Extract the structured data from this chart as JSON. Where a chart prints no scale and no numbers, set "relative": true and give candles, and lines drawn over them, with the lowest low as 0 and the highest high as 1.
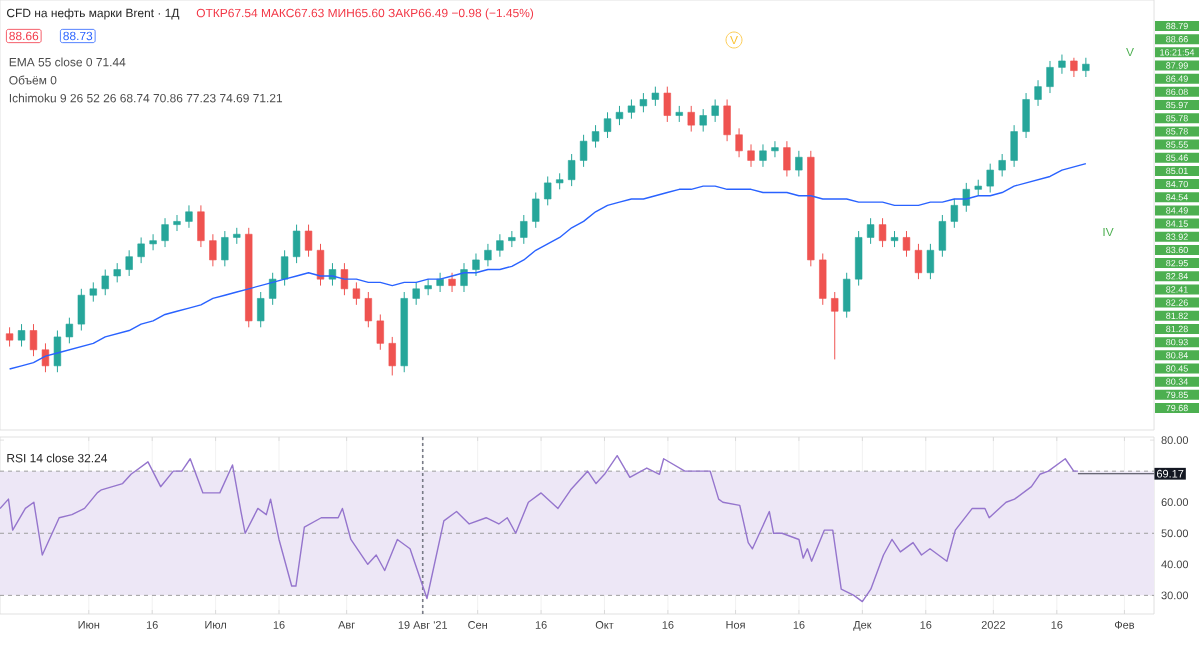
{
  "chart_data": [
    {
      "type": "candlestick",
      "title": "CFD на нефть марки Brent · 1Д",
      "subtitle": "ОТКР67.54 МАКС67.63 МИН65.60 ЗАКР66.49 −0.98 (−1.45%)",
      "relative": true,
      "categories": [
        null,
        null,
        null,
        null,
        null,
        null,
        null,
        null,
        null,
        null,
        null,
        null,
        null,
        null,
        null,
        null,
        null,
        null,
        null,
        null,
        null,
        null,
        null,
        null,
        null,
        null,
        null,
        null,
        null,
        null,
        null,
        null,
        null,
        null,
        null,
        null,
        null,
        null,
        null,
        null,
        null,
        null,
        null,
        null,
        null,
        null,
        null,
        null,
        null,
        null,
        null,
        null,
        null,
        null,
        null,
        null,
        null,
        null,
        null,
        null,
        null,
        null,
        null,
        null,
        null,
        null,
        null,
        null,
        null,
        null,
        null,
        null,
        null,
        null,
        null,
        null,
        null,
        null,
        null,
        null,
        null,
        null,
        null,
        null,
        null,
        null,
        null,
        null,
        null,
        null,
        null
      ],
      "ohlc": [
        [
          0.13,
          0.15,
          0.09,
          0.11
        ],
        [
          0.11,
          0.16,
          0.09,
          0.14
        ],
        [
          0.14,
          0.16,
          0.06,
          0.08
        ],
        [
          0.08,
          0.1,
          0.01,
          0.03
        ],
        [
          0.03,
          0.14,
          0.01,
          0.12
        ],
        [
          0.12,
          0.18,
          0.1,
          0.16
        ],
        [
          0.16,
          0.27,
          0.14,
          0.25
        ],
        [
          0.25,
          0.29,
          0.23,
          0.27
        ],
        [
          0.27,
          0.33,
          0.25,
          0.31
        ],
        [
          0.31,
          0.35,
          0.29,
          0.33
        ],
        [
          0.33,
          0.39,
          0.31,
          0.37
        ],
        [
          0.37,
          0.43,
          0.35,
          0.41
        ],
        [
          0.41,
          0.44,
          0.39,
          0.42
        ],
        [
          0.42,
          0.49,
          0.4,
          0.47
        ],
        [
          0.47,
          0.5,
          0.45,
          0.48
        ],
        [
          0.48,
          0.53,
          0.46,
          0.51
        ],
        [
          0.51,
          0.53,
          0.4,
          0.42
        ],
        [
          0.42,
          0.44,
          0.34,
          0.36
        ],
        [
          0.36,
          0.45,
          0.34,
          0.43
        ],
        [
          0.43,
          0.46,
          0.41,
          0.44
        ],
        [
          0.44,
          0.46,
          0.15,
          0.17
        ],
        [
          0.17,
          0.26,
          0.15,
          0.24
        ],
        [
          0.24,
          0.32,
          0.22,
          0.3
        ],
        [
          0.3,
          0.39,
          0.28,
          0.37
        ],
        [
          0.37,
          0.47,
          0.35,
          0.45
        ],
        [
          0.45,
          0.47,
          0.37,
          0.39
        ],
        [
          0.39,
          0.41,
          0.28,
          0.3
        ],
        [
          0.3,
          0.35,
          0.28,
          0.33
        ],
        [
          0.33,
          0.35,
          0.25,
          0.27
        ],
        [
          0.27,
          0.29,
          0.22,
          0.24
        ],
        [
          0.24,
          0.26,
          0.15,
          0.17
        ],
        [
          0.17,
          0.19,
          0.08,
          0.1
        ],
        [
          0.1,
          0.12,
          0,
          0.03
        ],
        [
          0.03,
          0.26,
          0.01,
          0.24
        ],
        [
          0.24,
          0.29,
          0.22,
          0.27
        ],
        [
          0.27,
          0.3,
          0.25,
          0.28
        ],
        [
          0.28,
          0.32,
          0.26,
          0.3
        ],
        [
          0.3,
          0.32,
          0.26,
          0.28
        ],
        [
          0.28,
          0.35,
          0.26,
          0.33
        ],
        [
          0.33,
          0.38,
          0.31,
          0.36
        ],
        [
          0.36,
          0.41,
          0.34,
          0.39
        ],
        [
          0.39,
          0.44,
          0.37,
          0.42
        ],
        [
          0.42,
          0.45,
          0.4,
          0.43
        ],
        [
          0.43,
          0.5,
          0.41,
          0.48
        ],
        [
          0.48,
          0.57,
          0.46,
          0.55
        ],
        [
          0.55,
          0.62,
          0.53,
          0.6
        ],
        [
          0.6,
          0.63,
          0.58,
          0.61
        ],
        [
          0.61,
          0.69,
          0.59,
          0.67
        ],
        [
          0.67,
          0.75,
          0.65,
          0.73
        ],
        [
          0.73,
          0.78,
          0.71,
          0.76
        ],
        [
          0.76,
          0.82,
          0.74,
          0.8
        ],
        [
          0.8,
          0.84,
          0.78,
          0.82
        ],
        [
          0.82,
          0.86,
          0.8,
          0.84
        ],
        [
          0.84,
          0.88,
          0.82,
          0.86
        ],
        [
          0.86,
          0.9,
          0.84,
          0.88
        ],
        [
          0.88,
          0.9,
          0.79,
          0.81
        ],
        [
          0.81,
          0.84,
          0.79,
          0.82
        ],
        [
          0.82,
          0.84,
          0.76,
          0.78
        ],
        [
          0.78,
          0.83,
          0.76,
          0.81
        ],
        [
          0.81,
          0.86,
          0.79,
          0.84
        ],
        [
          0.84,
          0.86,
          0.73,
          0.75
        ],
        [
          0.75,
          0.77,
          0.68,
          0.7
        ],
        [
          0.7,
          0.72,
          0.65,
          0.67
        ],
        [
          0.67,
          0.72,
          0.65,
          0.7
        ],
        [
          0.7,
          0.73,
          0.68,
          0.71
        ],
        [
          0.71,
          0.73,
          0.62,
          0.64
        ],
        [
          0.64,
          0.7,
          0.62,
          0.68
        ],
        [
          0.68,
          0.7,
          0.34,
          0.36
        ],
        [
          0.36,
          0.38,
          0.22,
          0.24
        ],
        [
          0.24,
          0.26,
          0.05,
          0.2
        ],
        [
          0.2,
          0.32,
          0.18,
          0.3
        ],
        [
          0.3,
          0.45,
          0.28,
          0.43
        ],
        [
          0.43,
          0.49,
          0.41,
          0.47
        ],
        [
          0.47,
          0.49,
          0.4,
          0.42
        ],
        [
          0.42,
          0.45,
          0.4,
          0.43
        ],
        [
          0.43,
          0.45,
          0.37,
          0.39
        ],
        [
          0.39,
          0.41,
          0.3,
          0.32
        ],
        [
          0.32,
          0.41,
          0.3,
          0.39
        ],
        [
          0.39,
          0.5,
          0.37,
          0.48
        ],
        [
          0.48,
          0.55,
          0.46,
          0.53
        ],
        [
          0.53,
          0.6,
          0.51,
          0.58
        ],
        [
          0.58,
          0.61,
          0.56,
          0.59
        ],
        [
          0.59,
          0.66,
          0.57,
          0.64
        ],
        [
          0.64,
          0.69,
          0.62,
          0.67
        ],
        [
          0.67,
          0.78,
          0.65,
          0.76
        ],
        [
          0.76,
          0.88,
          0.74,
          0.86
        ],
        [
          0.86,
          0.92,
          0.84,
          0.9
        ],
        [
          0.9,
          0.98,
          0.88,
          0.96
        ],
        [
          0.96,
          1,
          0.94,
          0.98
        ],
        [
          0.98,
          0.99,
          0.93,
          0.95
        ],
        [
          0.95,
          0.99,
          0.93,
          0.97
        ]
      ],
      "series": [
        {
          "type": "line",
          "color": "#2962ff",
          "values": [
            0.02,
            0.03,
            0.04,
            0.06,
            0.07,
            0.08,
            0.09,
            0.1,
            0.12,
            0.13,
            0.14,
            0.16,
            0.17,
            0.19,
            0.2,
            0.21,
            0.22,
            0.24,
            0.25,
            0.26,
            0.27,
            0.28,
            0.29,
            0.3,
            0.31,
            0.32,
            0.31,
            0.31,
            0.3,
            0.3,
            0.29,
            0.29,
            0.28,
            0.29,
            0.29,
            0.3,
            0.3,
            0.31,
            0.32,
            0.32,
            0.33,
            0.33,
            0.34,
            0.36,
            0.39,
            0.41,
            0.43,
            0.46,
            0.48,
            0.51,
            0.53,
            0.54,
            0.55,
            0.55,
            0.56,
            0.57,
            0.58,
            0.58,
            0.59,
            0.59,
            0.58,
            0.58,
            0.58,
            0.57,
            0.57,
            0.57,
            0.56,
            0.56,
            0.55,
            0.55,
            0.55,
            0.54,
            0.54,
            0.54,
            0.53,
            0.53,
            0.53,
            0.54,
            0.54,
            0.55,
            0.55,
            0.56,
            0.56,
            0.57,
            0.59,
            0.6,
            0.61,
            0.62,
            0.64,
            0.65,
            0.66
          ]
        }
      ],
      "annotations": [
        "88.66",
        "88.73",
        "EMA 55 close 0 71.44",
        "Объём 0",
        "Ichimoku 9 26 52 26 68.74 70.86 77.23 74.69 71.21",
        "88.79",
        "88.66",
        "16:21:54",
        "87.99",
        "86.49",
        "86.08",
        "85.97",
        "85.78",
        "85.78",
        "85.55",
        "85.46",
        "85.01",
        "84.70",
        "84.54",
        "84.49",
        "84.15",
        "83.92",
        "83.60",
        "82.95",
        "82.84",
        "82.41",
        "82.26",
        "81.82",
        "81.28",
        "80.93",
        "80.84",
        "80.45",
        "80.34",
        "79.85",
        "79.68",
        "V",
        "V",
        "IV"
      ]
    },
    {
      "type": "line",
      "title": "RSI 14 close 32.24",
      "xlim": [
        "2021-05-11",
        "2022-02-08"
      ],
      "ylim": [
        24,
        81
      ],
      "xticks": [
        {
          "value": "2021-06-01",
          "label": "Июн"
        },
        {
          "value": "2021-06-16",
          "label": "16"
        },
        {
          "value": "2021-07-01",
          "label": "Июл"
        },
        {
          "value": "2021-07-16",
          "label": "16"
        },
        {
          "value": "2021-08-01",
          "label": "Авг"
        },
        {
          "value": "2021-08-19",
          "label": "19 Авг '21"
        },
        {
          "value": "2021-09-01",
          "label": "Сен"
        },
        {
          "value": "2021-09-16",
          "label": "16"
        },
        {
          "value": "2021-10-01",
          "label": "Окт"
        },
        {
          "value": "2021-10-16",
          "label": "16"
        },
        {
          "value": "2021-11-01",
          "label": "Ноя"
        },
        {
          "value": "2021-11-16",
          "label": "16"
        },
        {
          "value": "2021-12-01",
          "label": "Дек"
        },
        {
          "value": "2021-12-16",
          "label": "16"
        },
        {
          "value": "2022-01-01",
          "label": "2022"
        },
        {
          "value": "2022-01-16",
          "label": "16"
        },
        {
          "value": "2022-02-01",
          "label": "Фев"
        }
      ],
      "yticks": [
        {
          "value": 30,
          "label": "30.00"
        },
        {
          "value": 40,
          "label": "40.00"
        },
        {
          "value": 50,
          "label": "50.00"
        },
        {
          "value": 60,
          "label": "60.00"
        },
        {
          "value": 80,
          "label": "80.00"
        }
      ],
      "grid": "x",
      "x": [
        "2021-05-11",
        "2021-05-13",
        "2021-05-14",
        "2021-05-17",
        "2021-05-19",
        "2021-05-21",
        "2021-05-25",
        "2021-05-28",
        "2021-05-31",
        "2021-06-03",
        "2021-06-04",
        "2021-06-09",
        "2021-06-11",
        "2021-06-15",
        "2021-06-18",
        "2021-06-21",
        "2021-06-23",
        "2021-06-25",
        "2021-06-28",
        "2021-07-02",
        "2021-07-05",
        "2021-07-07",
        "2021-07-08",
        "2021-07-11",
        "2021-07-13",
        "2021-07-14",
        "2021-07-16",
        "2021-07-19",
        "2021-07-20",
        "2021-07-22",
        "2021-07-26",
        "2021-07-30",
        "2021-07-31",
        "2021-08-02",
        "2021-08-06",
        "2021-08-08",
        "2021-08-10",
        "2021-08-13",
        "2021-08-16",
        "2021-08-19",
        "2021-08-20",
        "2021-08-24",
        "2021-08-27",
        "2021-08-30",
        "2021-09-03",
        "2021-09-06",
        "2021-09-08",
        "2021-09-10",
        "2021-09-13",
        "2021-09-16",
        "2021-09-20",
        "2021-09-23",
        "2021-09-27",
        "2021-09-29",
        "2021-10-01",
        "2021-10-04",
        "2021-10-07",
        "2021-10-11",
        "2021-10-14",
        "2021-10-15",
        "2021-10-20",
        "2021-10-22",
        "2021-10-26",
        "2021-10-28",
        "2021-10-29",
        "2021-11-02",
        "2021-11-04",
        "2021-11-05",
        "2021-11-09",
        "2021-11-10",
        "2021-11-12",
        "2021-11-16",
        "2021-11-17",
        "2021-11-18",
        "2021-11-19",
        "2021-11-22",
        "2021-11-24",
        "2021-11-26",
        "2021-11-29",
        "2021-12-01",
        "2021-12-03",
        "2021-12-06",
        "2021-12-08",
        "2021-12-10",
        "2021-12-13",
        "2021-12-15",
        "2021-12-17",
        "2021-12-21",
        "2021-12-23",
        "2021-12-27",
        "2021-12-30",
        "2021-12-31",
        "2022-01-04",
        "2022-01-06",
        "2022-01-10",
        "2022-01-12",
        "2022-01-14",
        "2022-01-18",
        "2022-01-20",
        "2022-01-21"
      ],
      "series": [
        {
          "color": "#9575cd",
          "values": [
            58,
            61,
            51,
            58,
            60,
            43,
            55,
            56,
            58,
            63,
            64,
            66,
            69,
            73,
            65,
            70,
            70,
            74,
            63,
            63,
            72,
            57,
            50,
            58,
            56,
            61,
            48,
            33,
            33,
            52,
            55,
            55,
            58,
            48,
            40,
            43,
            38,
            48,
            45,
            33,
            29,
            54,
            57,
            53,
            55,
            53,
            55,
            50,
            60,
            63,
            58,
            64,
            70,
            66,
            69,
            75,
            68,
            71,
            69,
            74,
            70,
            70,
            70,
            61,
            60,
            59,
            47,
            45,
            57,
            50,
            50,
            48,
            42,
            45,
            41,
            51,
            51,
            32,
            30,
            28,
            32,
            43,
            48,
            44,
            47,
            43,
            45,
            41,
            51,
            58,
            58,
            55,
            60,
            61,
            65,
            69,
            70,
            74,
            70,
            70
          ]
        }
      ],
      "bands": [
        {
          "axis": "y",
          "from": 30,
          "to": 70,
          "color": "#ede7f6"
        }
      ],
      "ref_lines": [
        {
          "axis": "y",
          "value": 30,
          "color": "#9e9e9e",
          "line_style": "dashed"
        },
        {
          "axis": "y",
          "value": 50,
          "color": "#9e9e9e",
          "line_style": "dashed"
        },
        {
          "axis": "y",
          "value": 70,
          "color": "#9e9e9e",
          "line_style": "dashed"
        },
        {
          "axis": "x",
          "value": "2021-08-19",
          "color": "#787b86",
          "line_style": "dotted"
        }
      ],
      "annotations": [
        {
          "text": "69.17",
          "x": "2022-01-21",
          "y": 69.17
        }
      ]
    }
  ]
}
